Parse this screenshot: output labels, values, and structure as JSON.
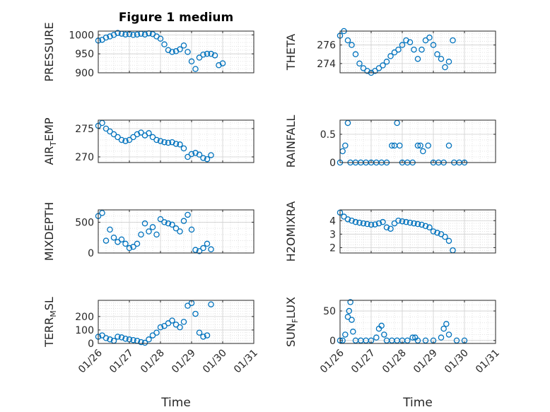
{
  "chart_data": [
    {
      "type": "scatter",
      "title": "Figure 1 medium",
      "ylabel": "PRESSURE",
      "ylim": [
        900,
        1010
      ],
      "yticks": [
        900,
        950,
        1000
      ],
      "xlim": [
        "01/26",
        "01/31"
      ],
      "xticks": [
        "01/26",
        "01/27",
        "01/28",
        "01/29",
        "01/30",
        "01/31"
      ],
      "xlabel": "",
      "points": [
        [
          "01/26 00:00",
          985
        ],
        [
          "01/26 03:00",
          987
        ],
        [
          "01/26 06:00",
          993
        ],
        [
          "01/26 09:00",
          996
        ],
        [
          "01/26 12:00",
          1000
        ],
        [
          "01/26 15:00",
          1005
        ],
        [
          "01/26 18:00",
          1003
        ],
        [
          "01/26 21:00",
          1001
        ],
        [
          "01/27 00:00",
          1002
        ],
        [
          "01/27 03:00",
          1000
        ],
        [
          "01/27 06:00",
          1001
        ],
        [
          "01/27 09:00",
          1003
        ],
        [
          "01/27 12:00",
          1001
        ],
        [
          "01/27 15:00",
          1004
        ],
        [
          "01/27 18:00",
          1002
        ],
        [
          "01/27 21:00",
          996
        ],
        [
          "01/28 00:00",
          990
        ],
        [
          "01/28 03:00",
          975
        ],
        [
          "01/28 06:00",
          960
        ],
        [
          "01/28 09:00",
          955
        ],
        [
          "01/28 12:00",
          957
        ],
        [
          "01/28 15:00",
          962
        ],
        [
          "01/28 18:00",
          972
        ],
        [
          "01/28 21:00",
          955
        ],
        [
          "01/29 00:00",
          930
        ],
        [
          "01/29 03:00",
          910
        ],
        [
          "01/29 06:00",
          940
        ],
        [
          "01/29 09:00",
          948
        ],
        [
          "01/29 12:00",
          950
        ],
        [
          "01/29 15:00",
          950
        ],
        [
          "01/29 18:00",
          946
        ],
        [
          "01/29 21:00",
          920
        ],
        [
          "01/30 00:00",
          925
        ]
      ]
    },
    {
      "type": "scatter",
      "title": "",
      "ylabel": "THETA",
      "ylim": [
        273,
        277.5
      ],
      "yticks": [
        274,
        276
      ],
      "xlim": [
        "01/26",
        "01/31"
      ],
      "xticks": [
        "01/26",
        "01/27",
        "01/28",
        "01/29",
        "01/30",
        "01/31"
      ],
      "xlabel": "",
      "points": [
        [
          "01/26 00:00",
          277
        ],
        [
          "01/26 03:00",
          277.5
        ],
        [
          "01/26 06:00",
          276.5
        ],
        [
          "01/26 09:00",
          276
        ],
        [
          "01/26 12:00",
          275
        ],
        [
          "01/26 15:00",
          274
        ],
        [
          "01/26 18:00",
          273.5
        ],
        [
          "01/26 21:00",
          273.2
        ],
        [
          "01/27 00:00",
          273
        ],
        [
          "01/27 03:00",
          273.2
        ],
        [
          "01/27 06:00",
          273.5
        ],
        [
          "01/27 09:00",
          273.8
        ],
        [
          "01/27 12:00",
          274.2
        ],
        [
          "01/27 15:00",
          274.8
        ],
        [
          "01/27 18:00",
          275.2
        ],
        [
          "01/27 21:00",
          275.5
        ],
        [
          "01/28 00:00",
          276
        ],
        [
          "01/28 03:00",
          276.5
        ],
        [
          "01/28 06:00",
          276.3
        ],
        [
          "01/28 09:00",
          275.5
        ],
        [
          "01/28 12:00",
          274.5
        ],
        [
          "01/28 15:00",
          275.5
        ],
        [
          "01/28 18:00",
          276.5
        ],
        [
          "01/28 21:00",
          276.8
        ],
        [
          "01/29 00:00",
          276
        ],
        [
          "01/29 03:00",
          275
        ],
        [
          "01/29 06:00",
          274.5
        ],
        [
          "01/29 09:00",
          273.6
        ],
        [
          "01/29 12:00",
          274.2
        ],
        [
          "01/29 15:00",
          276.5
        ]
      ]
    },
    {
      "type": "scatter",
      "title": "",
      "ylabel": "AIR_TEMP",
      "ylim": [
        269,
        276.5
      ],
      "yticks": [
        270,
        275
      ],
      "xlim": [
        "01/26",
        "01/31"
      ],
      "xticks": [
        "01/26",
        "01/27",
        "01/28",
        "01/29",
        "01/30",
        "01/31"
      ],
      "xlabel": "",
      "points": [
        [
          "01/26 00:00",
          275.5
        ],
        [
          "01/26 03:00",
          276
        ],
        [
          "01/26 06:00",
          275
        ],
        [
          "01/26 09:00",
          274.5
        ],
        [
          "01/26 12:00",
          274
        ],
        [
          "01/26 15:00",
          273.5
        ],
        [
          "01/26 18:00",
          273
        ],
        [
          "01/26 21:00",
          272.8
        ],
        [
          "01/27 00:00",
          273
        ],
        [
          "01/27 03:00",
          273.5
        ],
        [
          "01/27 06:00",
          274
        ],
        [
          "01/27 09:00",
          274.3
        ],
        [
          "01/27 12:00",
          273.8
        ],
        [
          "01/27 15:00",
          274.2
        ],
        [
          "01/27 18:00",
          273.5
        ],
        [
          "01/27 21:00",
          273
        ],
        [
          "01/28 00:00",
          272.8
        ],
        [
          "01/28 03:00",
          272.6
        ],
        [
          "01/28 06:00",
          272.5
        ],
        [
          "01/28 09:00",
          272.6
        ],
        [
          "01/28 12:00",
          272.3
        ],
        [
          "01/28 15:00",
          272.2
        ],
        [
          "01/28 18:00",
          271.5
        ],
        [
          "01/28 21:00",
          270
        ],
        [
          "01/29 00:00",
          270.5
        ],
        [
          "01/29 03:00",
          270.7
        ],
        [
          "01/29 06:00",
          270.4
        ],
        [
          "01/29 09:00",
          269.8
        ],
        [
          "01/29 12:00",
          269.6
        ],
        [
          "01/29 15:00",
          270.3
        ]
      ]
    },
    {
      "type": "scatter",
      "title": "",
      "ylabel": "RAINFALL",
      "ylim": [
        0,
        0.75
      ],
      "yticks": [
        0,
        0.5
      ],
      "xlim": [
        "01/26",
        "01/31"
      ],
      "xticks": [
        "01/26",
        "01/27",
        "01/28",
        "01/29",
        "01/30",
        "01/31"
      ],
      "xlabel": "",
      "points": [
        [
          "01/26 00:00",
          0
        ],
        [
          "01/26 02:00",
          0.2
        ],
        [
          "01/26 04:00",
          0.3
        ],
        [
          "01/26 06:00",
          0.7
        ],
        [
          "01/26 08:00",
          0
        ],
        [
          "01/26 12:00",
          0
        ],
        [
          "01/26 16:00",
          0
        ],
        [
          "01/26 20:00",
          0
        ],
        [
          "01/27 00:00",
          0
        ],
        [
          "01/27 04:00",
          0
        ],
        [
          "01/27 08:00",
          0
        ],
        [
          "01/27 12:00",
          0
        ],
        [
          "01/27 16:00",
          0.3
        ],
        [
          "01/27 18:00",
          0.3
        ],
        [
          "01/27 20:00",
          0.7
        ],
        [
          "01/27 22:00",
          0.3
        ],
        [
          "01/28 00:00",
          0
        ],
        [
          "01/28 04:00",
          0
        ],
        [
          "01/28 08:00",
          0
        ],
        [
          "01/28 12:00",
          0.3
        ],
        [
          "01/28 14:00",
          0.3
        ],
        [
          "01/28 16:00",
          0.2
        ],
        [
          "01/28 20:00",
          0.3
        ],
        [
          "01/29 00:00",
          0
        ],
        [
          "01/29 04:00",
          0
        ],
        [
          "01/29 08:00",
          0
        ],
        [
          "01/29 12:00",
          0.3
        ],
        [
          "01/29 16:00",
          0
        ],
        [
          "01/29 20:00",
          0
        ],
        [
          "01/30 00:00",
          0
        ]
      ]
    },
    {
      "type": "scatter",
      "title": "",
      "ylabel": "MIXDEPTH",
      "ylim": [
        0,
        700
      ],
      "yticks": [
        0,
        500
      ],
      "xlim": [
        "01/26",
        "01/31"
      ],
      "xticks": [
        "01/26",
        "01/27",
        "01/28",
        "01/29",
        "01/30",
        "01/31"
      ],
      "xlabel": "",
      "points": [
        [
          "01/26 00:00",
          600
        ],
        [
          "01/26 03:00",
          650
        ],
        [
          "01/26 06:00",
          200
        ],
        [
          "01/26 09:00",
          380
        ],
        [
          "01/26 12:00",
          250
        ],
        [
          "01/26 15:00",
          180
        ],
        [
          "01/26 18:00",
          220
        ],
        [
          "01/26 21:00",
          150
        ],
        [
          "01/27 00:00",
          80
        ],
        [
          "01/27 03:00",
          100
        ],
        [
          "01/27 06:00",
          150
        ],
        [
          "01/27 09:00",
          300
        ],
        [
          "01/27 12:00",
          480
        ],
        [
          "01/27 15:00",
          350
        ],
        [
          "01/27 18:00",
          420
        ],
        [
          "01/27 21:00",
          300
        ],
        [
          "01/28 00:00",
          550
        ],
        [
          "01/28 03:00",
          500
        ],
        [
          "01/28 06:00",
          480
        ],
        [
          "01/28 09:00",
          460
        ],
        [
          "01/28 12:00",
          400
        ],
        [
          "01/28 15:00",
          350
        ],
        [
          "01/28 18:00",
          520
        ],
        [
          "01/28 21:00",
          620
        ],
        [
          "01/29 00:00",
          380
        ],
        [
          "01/29 03:00",
          50
        ],
        [
          "01/29 06:00",
          30
        ],
        [
          "01/29 09:00",
          80
        ],
        [
          "01/29 12:00",
          150
        ],
        [
          "01/29 15:00",
          60
        ]
      ]
    },
    {
      "type": "scatter",
      "title": "",
      "ylabel": "H2OMIXRA",
      "ylim": [
        1.6,
        4.8
      ],
      "yticks": [
        2,
        3,
        4
      ],
      "xlim": [
        "01/26",
        "01/31"
      ],
      "xticks": [
        "01/26",
        "01/27",
        "01/28",
        "01/29",
        "01/30",
        "01/31"
      ],
      "xlabel": "",
      "points": [
        [
          "01/26 00:00",
          4.6
        ],
        [
          "01/26 03:00",
          4.3
        ],
        [
          "01/26 06:00",
          4.1
        ],
        [
          "01/26 09:00",
          4.0
        ],
        [
          "01/26 12:00",
          3.9
        ],
        [
          "01/26 15:00",
          3.85
        ],
        [
          "01/26 18:00",
          3.8
        ],
        [
          "01/26 21:00",
          3.75
        ],
        [
          "01/27 00:00",
          3.7
        ],
        [
          "01/27 03:00",
          3.72
        ],
        [
          "01/27 06:00",
          3.8
        ],
        [
          "01/27 09:00",
          3.9
        ],
        [
          "01/27 12:00",
          3.5
        ],
        [
          "01/27 15:00",
          3.4
        ],
        [
          "01/27 18:00",
          3.8
        ],
        [
          "01/27 21:00",
          4.0
        ],
        [
          "01/28 00:00",
          3.95
        ],
        [
          "01/28 03:00",
          3.9
        ],
        [
          "01/28 06:00",
          3.85
        ],
        [
          "01/28 09:00",
          3.8
        ],
        [
          "01/28 12:00",
          3.75
        ],
        [
          "01/28 15:00",
          3.7
        ],
        [
          "01/28 18:00",
          3.6
        ],
        [
          "01/28 21:00",
          3.5
        ],
        [
          "01/29 00:00",
          3.2
        ],
        [
          "01/29 03:00",
          3.1
        ],
        [
          "01/29 06:00",
          3.0
        ],
        [
          "01/29 09:00",
          2.8
        ],
        [
          "01/29 12:00",
          2.5
        ],
        [
          "01/29 15:00",
          1.8
        ]
      ]
    },
    {
      "type": "scatter",
      "title": "",
      "ylabel": "TERR_MSL",
      "ylim": [
        0,
        320
      ],
      "yticks": [
        0,
        100,
        200
      ],
      "xlim": [
        "01/26",
        "01/31"
      ],
      "xticks": [
        "01/26",
        "01/27",
        "01/28",
        "01/29",
        "01/30",
        "01/31"
      ],
      "xlabel": "Time",
      "points": [
        [
          "01/26 00:00",
          50
        ],
        [
          "01/26 03:00",
          60
        ],
        [
          "01/26 06:00",
          40
        ],
        [
          "01/26 09:00",
          30
        ],
        [
          "01/26 12:00",
          20
        ],
        [
          "01/26 15:00",
          50
        ],
        [
          "01/26 18:00",
          45
        ],
        [
          "01/26 21:00",
          35
        ],
        [
          "01/27 00:00",
          30
        ],
        [
          "01/27 03:00",
          25
        ],
        [
          "01/27 06:00",
          20
        ],
        [
          "01/27 09:00",
          10
        ],
        [
          "01/27 12:00",
          5
        ],
        [
          "01/27 15:00",
          30
        ],
        [
          "01/27 18:00",
          60
        ],
        [
          "01/27 21:00",
          80
        ],
        [
          "01/28 00:00",
          120
        ],
        [
          "01/28 03:00",
          130
        ],
        [
          "01/28 06:00",
          150
        ],
        [
          "01/28 09:00",
          170
        ],
        [
          "01/28 12:00",
          140
        ],
        [
          "01/28 15:00",
          120
        ],
        [
          "01/28 18:00",
          160
        ],
        [
          "01/28 21:00",
          280
        ],
        [
          "01/29 00:00",
          300
        ],
        [
          "01/29 03:00",
          220
        ],
        [
          "01/29 06:00",
          80
        ],
        [
          "01/29 09:00",
          50
        ],
        [
          "01/29 12:00",
          60
        ],
        [
          "01/29 15:00",
          290
        ]
      ]
    },
    {
      "type": "scatter",
      "title": "",
      "ylabel": "SUN_FLUX",
      "ylim": [
        -5,
        68
      ],
      "yticks": [
        0,
        50
      ],
      "xlim": [
        "01/26",
        "01/31"
      ],
      "xticks": [
        "01/26",
        "01/27",
        "01/28",
        "01/29",
        "01/30",
        "01/31"
      ],
      "xlabel": "Time",
      "points": [
        [
          "01/26 00:00",
          0
        ],
        [
          "01/26 02:00",
          0
        ],
        [
          "01/26 04:00",
          10
        ],
        [
          "01/26 06:00",
          40
        ],
        [
          "01/26 07:00",
          50
        ],
        [
          "01/26 08:00",
          65
        ],
        [
          "01/26 09:00",
          35
        ],
        [
          "01/26 10:00",
          15
        ],
        [
          "01/26 12:00",
          0
        ],
        [
          "01/26 16:00",
          0
        ],
        [
          "01/26 20:00",
          0
        ],
        [
          "01/27 00:00",
          0
        ],
        [
          "01/27 04:00",
          5
        ],
        [
          "01/27 06:00",
          20
        ],
        [
          "01/27 08:00",
          25
        ],
        [
          "01/27 10:00",
          10
        ],
        [
          "01/27 12:00",
          0
        ],
        [
          "01/27 16:00",
          0
        ],
        [
          "01/27 20:00",
          0
        ],
        [
          "01/28 00:00",
          0
        ],
        [
          "01/28 04:00",
          0
        ],
        [
          "01/28 08:00",
          5
        ],
        [
          "01/28 10:00",
          5
        ],
        [
          "01/28 12:00",
          0
        ],
        [
          "01/28 18:00",
          0
        ],
        [
          "01/29 00:00",
          0
        ],
        [
          "01/29 06:00",
          5
        ],
        [
          "01/29 08:00",
          20
        ],
        [
          "01/29 10:00",
          28
        ],
        [
          "01/29 12:00",
          10
        ],
        [
          "01/29 18:00",
          0
        ],
        [
          "01/30 00:00",
          0
        ]
      ]
    }
  ]
}
